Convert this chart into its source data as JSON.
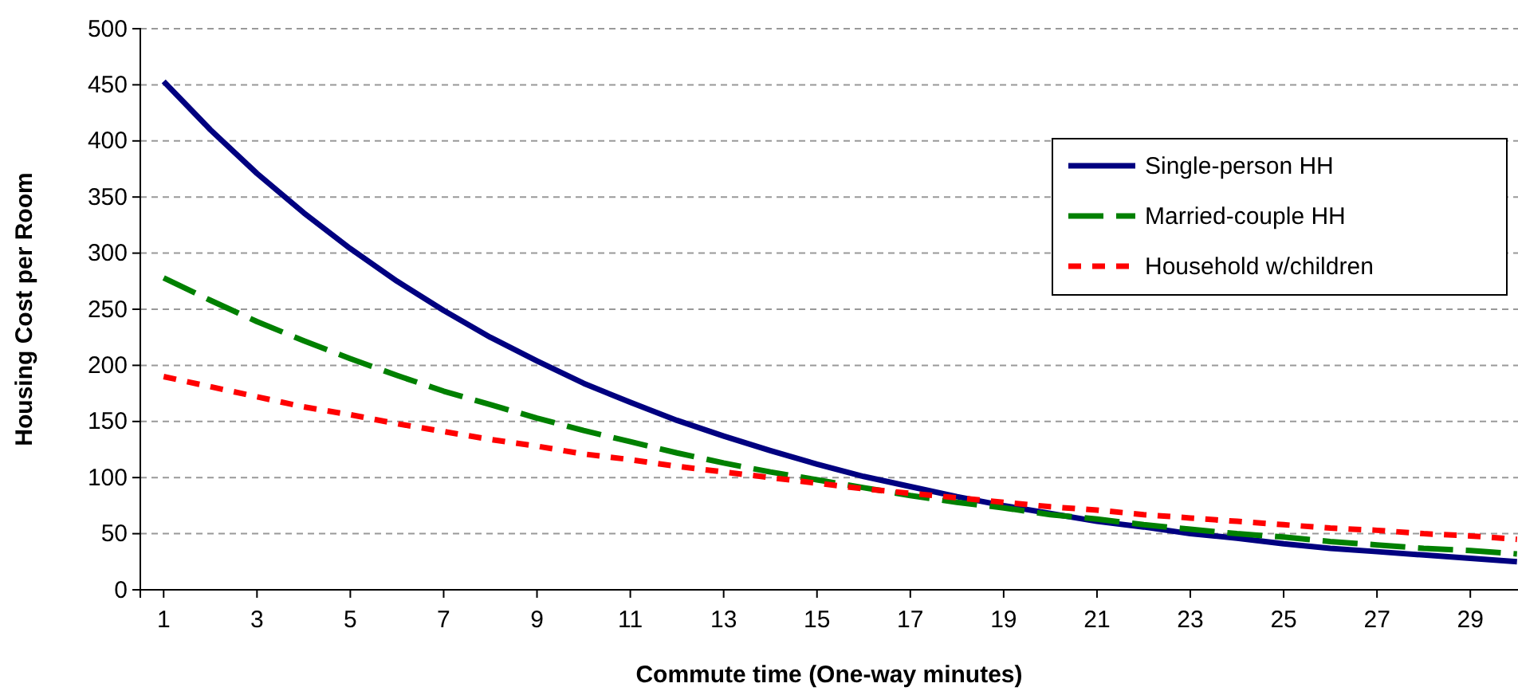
{
  "chart_data": {
    "type": "line",
    "xlabel": "Commute time (One-way minutes)",
    "ylabel": "Housing Cost per Room",
    "x": [
      1,
      2,
      3,
      4,
      5,
      6,
      7,
      8,
      9,
      10,
      11,
      12,
      13,
      14,
      15,
      16,
      17,
      18,
      19,
      20,
      21,
      22,
      23,
      24,
      25,
      26,
      27,
      28,
      29,
      30
    ],
    "xlim": [
      0.5,
      30.5
    ],
    "xticks": [
      1,
      3,
      5,
      7,
      9,
      11,
      13,
      15,
      17,
      19,
      21,
      23,
      25,
      27,
      29
    ],
    "ylim": [
      0,
      500
    ],
    "yticks": [
      0,
      50,
      100,
      150,
      200,
      250,
      300,
      350,
      400,
      450,
      500
    ],
    "grid": "y",
    "legend": "top right",
    "marker": "none",
    "series": [
      {
        "name": "Single-person HH",
        "color": "#000080",
        "line_style": "solid",
        "values": [
          453,
          410,
          371,
          336,
          304,
          275,
          249,
          225,
          204,
          184,
          167,
          151,
          137,
          124,
          112,
          101,
          92,
          83,
          75,
          68,
          61,
          56,
          50,
          46,
          41,
          37,
          34,
          31,
          28,
          25
        ]
      },
      {
        "name": "Married-couple HH",
        "color": "#008000",
        "line_style": "dashed",
        "values": [
          278,
          258,
          239,
          222,
          206,
          191,
          177,
          165,
          153,
          142,
          132,
          122,
          113,
          105,
          98,
          91,
          84,
          78,
          73,
          67,
          63,
          58,
          54,
          50,
          47,
          43,
          40,
          37,
          35,
          32
        ]
      },
      {
        "name": "Household w/children",
        "color": "#ff0000",
        "line_style": "dotted",
        "values": [
          190,
          181,
          172,
          163,
          156,
          148,
          141,
          134,
          128,
          121,
          116,
          110,
          105,
          100,
          95,
          90,
          86,
          82,
          78,
          74,
          71,
          67,
          64,
          61,
          58,
          55,
          53,
          50,
          48,
          45
        ]
      }
    ]
  }
}
